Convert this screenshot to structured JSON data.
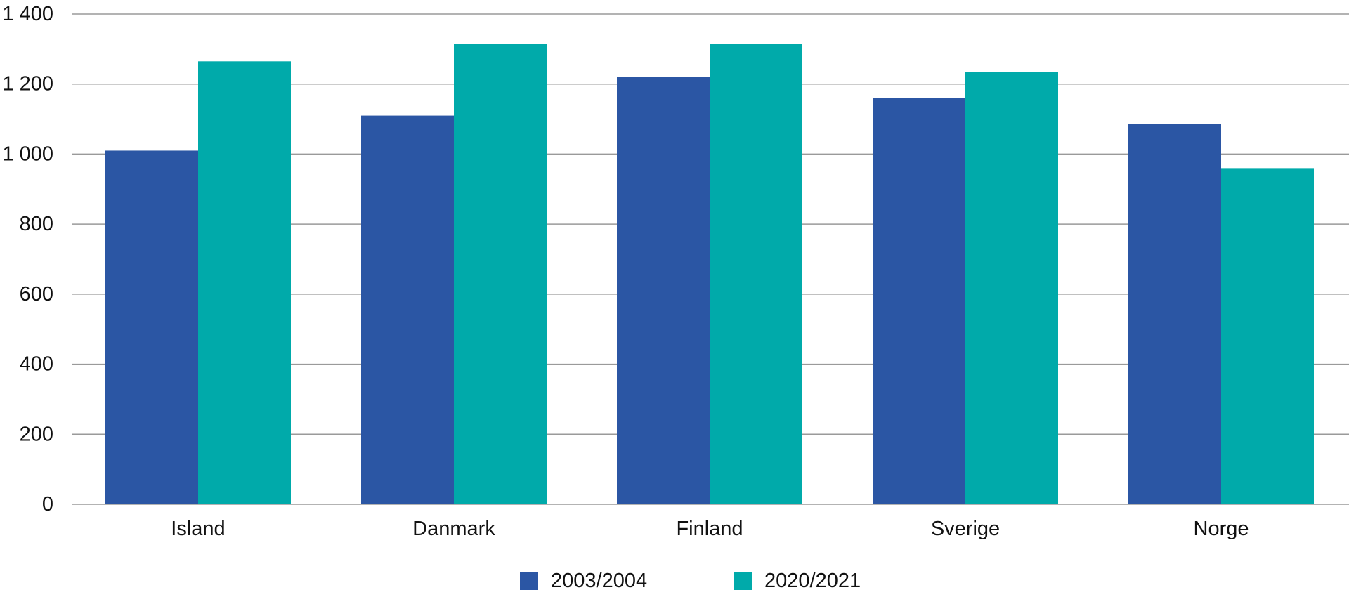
{
  "chart_data": {
    "type": "bar",
    "categories": [
      "Island",
      "Danmark",
      "Finland",
      "Sverige",
      "Norge"
    ],
    "series": [
      {
        "name": "2003/2004",
        "color": "#2B56A4",
        "values": [
          1010,
          1110,
          1220,
          1160,
          1087
        ]
      },
      {
        "name": "2020/2021",
        "color": "#00AAAA",
        "values": [
          1265,
          1315,
          1315,
          1235,
          960
        ]
      }
    ],
    "y_ticks": [
      0,
      200,
      400,
      600,
      800,
      1000,
      1200,
      1400
    ],
    "y_tick_labels": [
      "0",
      "200",
      "400",
      "600",
      "800",
      "1 000",
      "1 200",
      "1 400"
    ],
    "ylim": [
      0,
      1400
    ],
    "grid": true,
    "legend_position": "bottom-center",
    "title": "",
    "xlabel": "",
    "ylabel": "",
    "gridline_color": "#9A9A9A"
  }
}
